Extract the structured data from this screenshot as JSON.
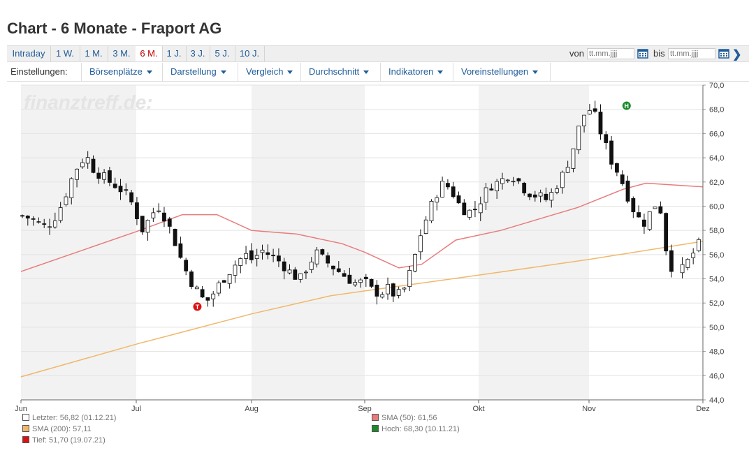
{
  "title": "Chart - 6 Monate - Fraport AG",
  "tabs": [
    {
      "label": "Intraday",
      "active": false
    },
    {
      "label": "1 W.",
      "active": false
    },
    {
      "label": "1 M.",
      "active": false
    },
    {
      "label": "3 M.",
      "active": false
    },
    {
      "label": "6 M.",
      "active": true
    },
    {
      "label": "1 J.",
      "active": false
    },
    {
      "label": "3 J.",
      "active": false
    },
    {
      "label": "5 J.",
      "active": false
    },
    {
      "label": "10 J.",
      "active": false
    }
  ],
  "range": {
    "from_label": "von",
    "to_label": "bis",
    "from_placeholder": "tt.mm.jjjj",
    "to_placeholder": "tt.mm.jjjj"
  },
  "settings": {
    "label": "Einstellungen:",
    "menus": [
      "Börsenplätze",
      "Darstellung",
      "Vergleich",
      "Durchschnitt",
      "Indikatoren",
      "Voreinstellungen"
    ]
  },
  "watermark": "finanztreff.de:",
  "colors": {
    "sma50": "#e87b7b",
    "sma200": "#f0b86a",
    "low_marker": "#dd1111",
    "high_marker": "#1a8a2a",
    "link": "#1f5c99",
    "active_tab": "#c00000"
  },
  "chart_data": {
    "type": "candlestick",
    "y_ticks": [
      "70,0",
      "68,0",
      "66,0",
      "64,0",
      "62,0",
      "60,0",
      "58,0",
      "56,0",
      "54,0",
      "52,0",
      "50,0",
      "48,0",
      "46,0",
      "44,0"
    ],
    "ylim": [
      44,
      70
    ],
    "x_ticks": [
      "Jun",
      "Jul",
      "Aug",
      "Sep",
      "Okt",
      "Nov",
      "Dez"
    ],
    "close_path": [
      59.2,
      59.0,
      58.6,
      58.3,
      59.0,
      60.2,
      62.0,
      63.4,
      64.2,
      63.0,
      62.5,
      62.0,
      61.6,
      61.0,
      60.0,
      58.0,
      59.0,
      60.1,
      59.0,
      57.4,
      55.5,
      54.0,
      53.0,
      52.0,
      52.8,
      53.8,
      54.6,
      55.4,
      56.0,
      55.5,
      56.4,
      56.0,
      55.6,
      55.0,
      54.3,
      54.0,
      55.3,
      56.1,
      55.5,
      55.0,
      54.5,
      54.0,
      53.6,
      53.8,
      53.0,
      52.8,
      53.2,
      52.5,
      53.2,
      55.0,
      57.6,
      59.4,
      61.0,
      62.0,
      61.2,
      60.0,
      59.5,
      59.8,
      61.0,
      61.8,
      62.0,
      62.6,
      62.4,
      61.5,
      61.0,
      60.8,
      60.5,
      61.6,
      62.7,
      64.3,
      66.6,
      68.2,
      67.4,
      65.5,
      63.8,
      62.6,
      61.0,
      59.4,
      58.5,
      59.6,
      60.6,
      56.0,
      54.3,
      54.8,
      55.8,
      56.82
    ],
    "sma50": [
      [
        0,
        54.6
      ],
      [
        1,
        57.9
      ],
      [
        1.4,
        59.3
      ],
      [
        1.7,
        59.3
      ],
      [
        2,
        58.0
      ],
      [
        2.4,
        57.7
      ],
      [
        2.8,
        56.9
      ],
      [
        3.0,
        56.2
      ],
      [
        3.3,
        54.9
      ],
      [
        3.5,
        55.2
      ],
      [
        3.8,
        57.2
      ],
      [
        4.2,
        58.0
      ],
      [
        4.9,
        59.9
      ],
      [
        5.3,
        61.4
      ],
      [
        5.5,
        61.9
      ],
      [
        6.0,
        61.6
      ]
    ],
    "sma200": [
      [
        0,
        45.9
      ],
      [
        1,
        48.6
      ],
      [
        2,
        51.1
      ],
      [
        2.7,
        52.6
      ],
      [
        3,
        53.0
      ],
      [
        4,
        54.3
      ],
      [
        5,
        55.6
      ],
      [
        6,
        57.1
      ]
    ],
    "low_marker": {
      "x": 1.53,
      "value": 51.7,
      "label": "T"
    },
    "high_marker": {
      "x": 5.33,
      "value": 68.3,
      "label": "H"
    }
  },
  "legend": {
    "last": "Letzter: 56,82 (01.12.21)",
    "sma50": "SMA (50): 61,56",
    "sma200": "SMA (200): 57,11",
    "high": "Hoch: 68,30 (10.11.21)",
    "low": "Tief: 51,70 (19.07.21)"
  }
}
